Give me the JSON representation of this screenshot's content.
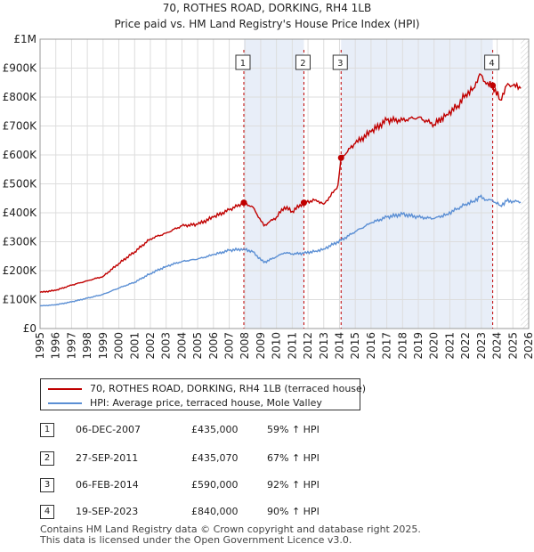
{
  "header": {
    "title": "70, ROTHES ROAD, DORKING, RH4 1LB",
    "subtitle": "Price paid vs. HM Land Registry's House Price Index (HPI)"
  },
  "colors": {
    "property": "#c00000",
    "hpi": "#5b8fd4",
    "shade": "#e8eef8",
    "grid": "#dddddd"
  },
  "chart_data": {
    "type": "line",
    "xlim": [
      1995,
      2026
    ],
    "ylim": [
      0,
      1000000
    ],
    "x_ticks": [
      "1995",
      "1996",
      "1997",
      "1998",
      "1999",
      "2000",
      "2001",
      "2002",
      "2003",
      "2004",
      "2005",
      "2006",
      "2007",
      "2008",
      "2009",
      "2010",
      "2011",
      "2012",
      "2013",
      "2014",
      "2015",
      "2016",
      "2017",
      "2018",
      "2019",
      "2020",
      "2021",
      "2022",
      "2023",
      "2024",
      "2025",
      "2026"
    ],
    "y_ticks": [
      {
        "value": 0,
        "label": "£0"
      },
      {
        "value": 100000,
        "label": "£100K"
      },
      {
        "value": 200000,
        "label": "£200K"
      },
      {
        "value": 300000,
        "label": "£300K"
      },
      {
        "value": 400000,
        "label": "£400K"
      },
      {
        "value": 500000,
        "label": "£500K"
      },
      {
        "value": 600000,
        "label": "£600K"
      },
      {
        "value": 700000,
        "label": "£700K"
      },
      {
        "value": 800000,
        "label": "£800K"
      },
      {
        "value": 900000,
        "label": "£900K"
      },
      {
        "value": 1000000,
        "label": "£1M"
      }
    ],
    "series": [
      {
        "name": "70, ROTHES ROAD, DORKING, RH4 1LB (terraced house)",
        "color": "#c00000",
        "points": [
          [
            1995.0,
            125000
          ],
          [
            1996.0,
            132000
          ],
          [
            1997.0,
            150000
          ],
          [
            1998.0,
            165000
          ],
          [
            1999.0,
            180000
          ],
          [
            2000.0,
            225000
          ],
          [
            2001.0,
            265000
          ],
          [
            2002.0,
            310000
          ],
          [
            2003.0,
            330000
          ],
          [
            2004.0,
            355000
          ],
          [
            2005.0,
            360000
          ],
          [
            2006.0,
            385000
          ],
          [
            2007.0,
            410000
          ],
          [
            2007.93,
            435000
          ],
          [
            2008.5,
            420000
          ],
          [
            2009.2,
            355000
          ],
          [
            2010.0,
            385000
          ],
          [
            2010.5,
            420000
          ],
          [
            2011.0,
            405000
          ],
          [
            2011.74,
            435070
          ],
          [
            2012.5,
            445000
          ],
          [
            2013.0,
            430000
          ],
          [
            2013.6,
            470000
          ],
          [
            2013.9,
            495000
          ],
          [
            2014.1,
            590000
          ],
          [
            2015.0,
            640000
          ],
          [
            2016.0,
            680000
          ],
          [
            2017.0,
            720000
          ],
          [
            2018.0,
            720000
          ],
          [
            2019.0,
            730000
          ],
          [
            2020.0,
            705000
          ],
          [
            2020.8,
            740000
          ],
          [
            2021.5,
            770000
          ],
          [
            2022.0,
            810000
          ],
          [
            2022.5,
            830000
          ],
          [
            2022.9,
            880000
          ],
          [
            2023.3,
            845000
          ],
          [
            2023.72,
            840000
          ],
          [
            2024.2,
            790000
          ],
          [
            2024.6,
            840000
          ],
          [
            2025.0,
            840000
          ],
          [
            2025.5,
            830000
          ]
        ]
      },
      {
        "name": "HPI: Average price, terraced house, Mole Valley",
        "color": "#5b8fd4",
        "points": [
          [
            1995.0,
            78000
          ],
          [
            1996.0,
            82000
          ],
          [
            1997.0,
            92000
          ],
          [
            1998.0,
            105000
          ],
          [
            1999.0,
            118000
          ],
          [
            2000.0,
            140000
          ],
          [
            2001.0,
            160000
          ],
          [
            2002.0,
            190000
          ],
          [
            2003.0,
            215000
          ],
          [
            2004.0,
            232000
          ],
          [
            2005.0,
            240000
          ],
          [
            2006.0,
            255000
          ],
          [
            2007.0,
            270000
          ],
          [
            2007.93,
            275000
          ],
          [
            2008.5,
            265000
          ],
          [
            2009.2,
            228000
          ],
          [
            2010.0,
            248000
          ],
          [
            2010.5,
            262000
          ],
          [
            2011.0,
            258000
          ],
          [
            2011.74,
            260000
          ],
          [
            2012.5,
            268000
          ],
          [
            2013.0,
            275000
          ],
          [
            2014.1,
            305000
          ],
          [
            2015.0,
            335000
          ],
          [
            2016.0,
            365000
          ],
          [
            2017.0,
            385000
          ],
          [
            2018.0,
            395000
          ],
          [
            2019.0,
            385000
          ],
          [
            2020.0,
            380000
          ],
          [
            2020.8,
            395000
          ],
          [
            2021.5,
            415000
          ],
          [
            2022.0,
            430000
          ],
          [
            2022.5,
            440000
          ],
          [
            2022.9,
            455000
          ],
          [
            2023.3,
            445000
          ],
          [
            2023.72,
            442000
          ],
          [
            2024.2,
            425000
          ],
          [
            2024.6,
            440000
          ],
          [
            2025.0,
            440000
          ],
          [
            2025.5,
            437000
          ]
        ]
      }
    ],
    "sales": [
      {
        "id": "1",
        "x": 2007.93,
        "y": 435000,
        "date": "06-DEC-2007",
        "price": "£435,000",
        "hpi": "59% ↑ HPI"
      },
      {
        "id": "2",
        "x": 2011.74,
        "y": 435070,
        "date": "27-SEP-2011",
        "price": "£435,070",
        "hpi": "67% ↑ HPI"
      },
      {
        "id": "3",
        "x": 2014.1,
        "y": 590000,
        "date": "06-FEB-2014",
        "price": "£590,000",
        "hpi": "92% ↑ HPI"
      },
      {
        "id": "4",
        "x": 2023.72,
        "y": 840000,
        "date": "19-SEP-2023",
        "price": "£840,000",
        "hpi": "90% ↑ HPI"
      }
    ],
    "shaded_ranges": [
      [
        2007.93,
        2011.74
      ],
      [
        2014.1,
        2023.72
      ]
    ],
    "forecast_from": 2025.5,
    "legend_position": "below"
  },
  "legend": {
    "property_label": "70, ROTHES ROAD, DORKING, RH4 1LB (terraced house)",
    "hpi_label": "HPI: Average price, terraced house, Mole Valley"
  },
  "footer": {
    "line1": "Contains HM Land Registry data © Crown copyright and database right 2025.",
    "line2": "This data is licensed under the Open Government Licence v3.0."
  }
}
